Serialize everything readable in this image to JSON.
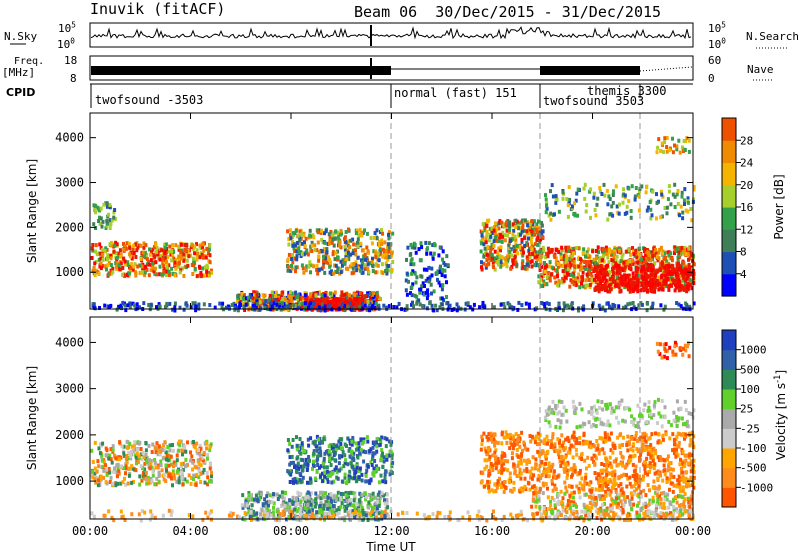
{
  "header": {
    "station": "Inuvik (fitACF)",
    "beam_date": "Beam 06  30/Dec/2015 - 31/Dec/2015"
  },
  "strip_labels": {
    "nsky_label": "N.Sky",
    "nsky_left_top": "10^5",
    "nsky_left_bottom": "10^0",
    "nsky_right_top": "10^5",
    "nsky_right_bottom": "10^0",
    "nsearch_label": "N.Search",
    "freq_label": "Freq.",
    "freq_unit": "[MHz]",
    "freq_top": "18",
    "freq_bottom": "8",
    "nave_top": "60",
    "nave_bottom": "0",
    "nave_label": "Nave",
    "cpid_label": "CPID"
  },
  "cpid_segments": [
    {
      "label": "twofsound -3503"
    },
    {
      "label": "normal (fast) 151"
    },
    {
      "label": "themis 3300"
    },
    {
      "label": "twofsound 3503"
    }
  ],
  "colors": {
    "power_scale": [
      "#0000ff",
      "#1e4fb4",
      "#3e7f57",
      "#33a04a",
      "#a6cf2b",
      "#f5b400",
      "#f08a00",
      "#ee5200",
      "#e81a00",
      "#ff0000"
    ],
    "velocity_scale": [
      "#ff0000",
      "#ff5500",
      "#ff8c1a",
      "#ffa500",
      "#cccccc",
      "#aaaaaa",
      "#5fd12a",
      "#2e8b57",
      "#3060a8",
      "#1f3fbf"
    ]
  },
  "chart_data": [
    {
      "type": "heatmap",
      "title": "Power",
      "xlabel": "",
      "ylabel": "Slant Range [km]",
      "x_ticks": [
        "00:00",
        "04:00",
        "08:00",
        "12:00",
        "16:00",
        "20:00",
        "00:00"
      ],
      "y_ticks": [
        "1000",
        "2000",
        "3000",
        "4000"
      ],
      "xlim_hours": [
        0,
        24
      ],
      "ylim_km": [
        180,
        4550
      ],
      "colorbar_label": "Power [dB]",
      "colorbar_ticks": [
        "4",
        "8",
        "12",
        "16",
        "20",
        "24",
        "28"
      ],
      "colorbar_range_db": [
        0,
        32
      ]
    },
    {
      "type": "heatmap",
      "title": "Velocity",
      "xlabel": "Time UT",
      "ylabel": "Slant Range [km]",
      "x_ticks": [
        "00:00",
        "04:00",
        "08:00",
        "12:00",
        "16:00",
        "20:00",
        "00:00"
      ],
      "y_ticks": [
        "1000",
        "2000",
        "3000",
        "4000"
      ],
      "xlim_hours": [
        0,
        24
      ],
      "ylim_km": [
        180,
        4550
      ],
      "colorbar_label": "Velocity [m s^-1]",
      "colorbar_ticks": [
        "1000",
        "500",
        "100",
        "25",
        "-25",
        "-100",
        "-500",
        "-1000"
      ]
    }
  ]
}
